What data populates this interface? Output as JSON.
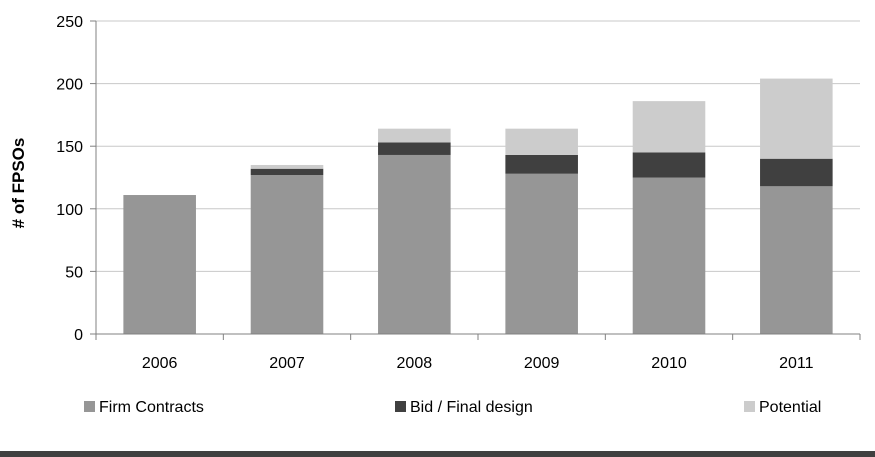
{
  "chart_data": {
    "type": "bar",
    "stacked": true,
    "title": "",
    "xlabel": "",
    "ylabel": "# of FPSOs",
    "categories": [
      "2006",
      "2007",
      "2008",
      "2009",
      "2010",
      "2011"
    ],
    "series": [
      {
        "name": "Firm Contracts",
        "color": "#969696",
        "values": [
          111,
          127,
          143,
          128,
          125,
          118
        ]
      },
      {
        "name": "Bid / Final design",
        "color": "#404040",
        "values": [
          0,
          5,
          10,
          15,
          20,
          22
        ]
      },
      {
        "name": "Potential",
        "color": "#cccccc",
        "values": [
          0,
          3,
          11,
          21,
          41,
          64
        ]
      }
    ],
    "ylim": [
      0,
      250
    ],
    "yticks": [
      "0",
      "50",
      "100",
      "150",
      "200",
      "250"
    ],
    "grid": true,
    "legend_position": "bottom"
  },
  "colors": {
    "grid": "#c8c8c8",
    "axis": "#808080",
    "bottom_rule": "#404040"
  }
}
